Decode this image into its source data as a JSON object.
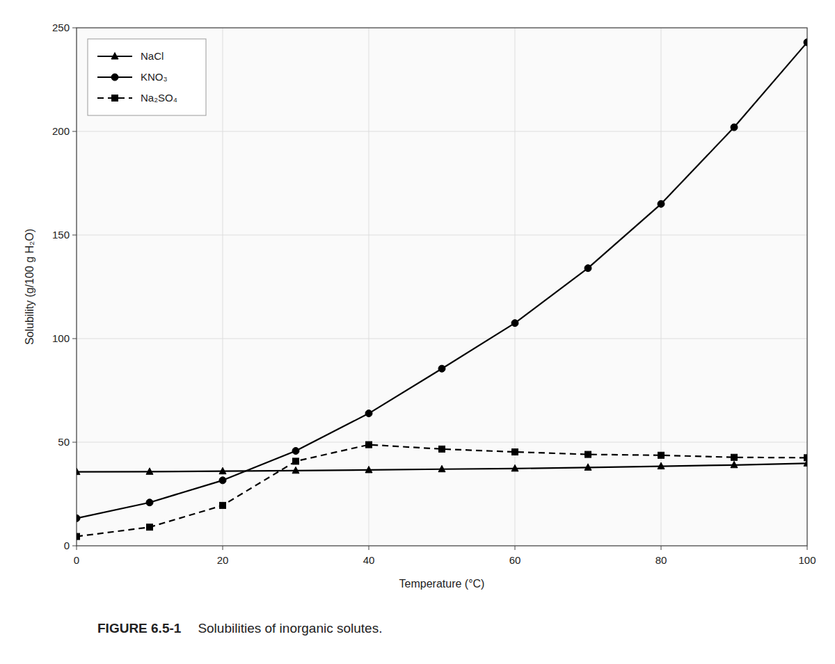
{
  "chart_data": {
    "type": "line",
    "title": "FIGURE 6.5-1",
    "subtitle": "Solubilities of inorganic solutes.",
    "x_label": "Temperature (°C)",
    "y_label": "Solubility (g/100 g H₂O)",
    "x": [
      0,
      10,
      20,
      30,
      40,
      50,
      60,
      70,
      80,
      90,
      100
    ],
    "series": [
      {
        "name": "NaCl",
        "color": "#000000",
        "marker": "triangle",
        "line_style": "solid",
        "values": [
          35.7,
          35.8,
          36.0,
          36.3,
          36.6,
          37.0,
          37.3,
          37.8,
          38.4,
          39.0,
          39.8
        ]
      },
      {
        "name": "KNO₃",
        "color": "#000000",
        "marker": "circle",
        "line_style": "solid",
        "values": [
          13.3,
          20.9,
          31.6,
          45.8,
          63.9,
          85.5,
          107.5,
          134.0,
          165.0,
          202.0,
          243.0
        ]
      },
      {
        "name": "Na₂SO₄",
        "color": "#000000",
        "marker": "square",
        "line_style": "dashed",
        "values": [
          4.5,
          9.0,
          19.5,
          40.8,
          48.8,
          46.7,
          45.3,
          44.1,
          43.7,
          42.7,
          42.5
        ]
      }
    ],
    "xlim": [
      0,
      100
    ],
    "ylim": [
      0,
      250
    ],
    "xticks": [
      0,
      20,
      40,
      60,
      80,
      100
    ],
    "yticks": [
      0,
      50,
      100,
      150,
      200,
      250
    ],
    "grid": true,
    "legend": "upper left"
  }
}
